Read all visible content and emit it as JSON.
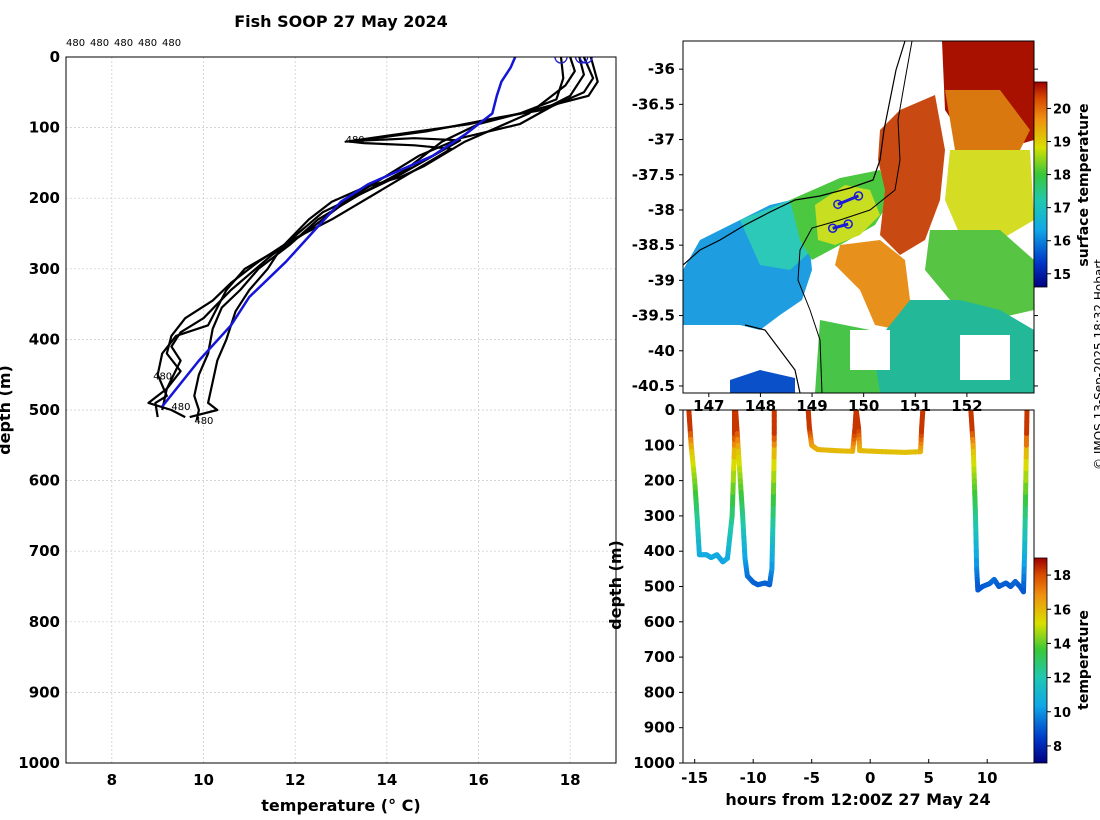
{
  "title": "Fish SOOP 27 May 2024",
  "credit": "© IMOS 13-Sep-2025 18:32 Hobart",
  "chart_data": [
    {
      "type": "line",
      "title": "Fish SOOP 27 May 2024",
      "xlabel": "temperature (° C)",
      "ylabel": "depth (m)",
      "xlim": [
        7,
        19
      ],
      "ylim": [
        1000,
        0
      ],
      "xticks": [
        8,
        10,
        12,
        14,
        16,
        18
      ],
      "yticks": [
        0,
        100,
        200,
        300,
        400,
        500,
        600,
        700,
        800,
        900,
        1000
      ],
      "grid": true,
      "top_labels": [
        "480",
        "480",
        "480",
        "480",
        "480"
      ],
      "annotations": [
        {
          "text": "480",
          "x": 13.1,
          "y": 122
        },
        {
          "text": "480",
          "x": 8.9,
          "y": 457
        },
        {
          "text": "480",
          "x": 9.3,
          "y": 500
        },
        {
          "text": "480",
          "x": 9.8,
          "y": 520
        }
      ],
      "series": [
        {
          "name": "profile-1",
          "color": "#000000",
          "points": [
            [
              17.8,
              0
            ],
            [
              17.85,
              30
            ],
            [
              17.7,
              60
            ],
            [
              16.9,
              80
            ],
            [
              15.8,
              95
            ],
            [
              13.1,
              120
            ],
            [
              13.6,
              118
            ],
            [
              14.6,
              115
            ],
            [
              15.6,
              118
            ],
            [
              14.2,
              170
            ],
            [
              12.6,
              220
            ],
            [
              11.7,
              270
            ],
            [
              10.9,
              300
            ],
            [
              10.5,
              330
            ],
            [
              10.1,
              380
            ],
            [
              9.4,
              395
            ],
            [
              9.1,
              420
            ],
            [
              9.0,
              450
            ],
            [
              9.2,
              480
            ],
            [
              8.95,
              490
            ],
            [
              9.0,
              510
            ]
          ]
        },
        {
          "name": "profile-2",
          "color": "#000000",
          "points": [
            [
              18.2,
              0
            ],
            [
              18.3,
              25
            ],
            [
              18.0,
              55
            ],
            [
              17.4,
              75
            ],
            [
              16.5,
              85
            ],
            [
              14.9,
              105
            ],
            [
              13.2,
              120
            ],
            [
              13.5,
              122
            ],
            [
              14.6,
              125
            ],
            [
              15.4,
              130
            ],
            [
              14.1,
              180
            ],
            [
              12.8,
              230
            ],
            [
              11.9,
              260
            ],
            [
              11.2,
              290
            ],
            [
              10.6,
              320
            ],
            [
              10.2,
              345
            ],
            [
              9.6,
              370
            ],
            [
              9.3,
              395
            ],
            [
              9.2,
              420
            ],
            [
              9.5,
              445
            ],
            [
              9.2,
              470
            ],
            [
              9.1,
              500
            ]
          ]
        },
        {
          "name": "profile-3",
          "color": "#000000",
          "points": [
            [
              18.3,
              0
            ],
            [
              18.5,
              30
            ],
            [
              18.3,
              50
            ],
            [
              17.6,
              70
            ],
            [
              16.9,
              95
            ],
            [
              15.6,
              115
            ],
            [
              14.7,
              140
            ],
            [
              13.2,
              200
            ],
            [
              12.2,
              250
            ],
            [
              11.5,
              280
            ],
            [
              10.6,
              330
            ],
            [
              10.0,
              370
            ],
            [
              9.5,
              390
            ],
            [
              9.3,
              410
            ],
            [
              9.5,
              430
            ],
            [
              9.2,
              470
            ],
            [
              8.8,
              490
            ],
            [
              9.3,
              500
            ],
            [
              9.6,
              510
            ]
          ]
        },
        {
          "name": "profile-4",
          "color": "#000000",
          "points": [
            [
              18.45,
              0
            ],
            [
              18.6,
              35
            ],
            [
              18.4,
              55
            ],
            [
              17.2,
              75
            ],
            [
              16.0,
              95
            ],
            [
              15.2,
              120
            ],
            [
              14.4,
              160
            ],
            [
              13.4,
              195
            ],
            [
              12.5,
              230
            ],
            [
              11.9,
              265
            ],
            [
              11.2,
              300
            ],
            [
              10.8,
              330
            ],
            [
              10.4,
              355
            ],
            [
              10.2,
              385
            ],
            [
              10.1,
              420
            ],
            [
              9.9,
              450
            ],
            [
              9.8,
              480
            ],
            [
              9.9,
              500
            ],
            [
              9.85,
              515
            ]
          ]
        },
        {
          "name": "profile-5",
          "color": "#000000",
          "points": [
            [
              18.0,
              0
            ],
            [
              18.1,
              20
            ],
            [
              17.9,
              40
            ],
            [
              17.5,
              60
            ],
            [
              17.1,
              80
            ],
            [
              16.4,
              100
            ],
            [
              15.7,
              120
            ],
            [
              14.8,
              155
            ],
            [
              14.3,
              170
            ],
            [
              13.5,
              185
            ],
            [
              12.8,
              205
            ],
            [
              12.3,
              230
            ],
            [
              11.7,
              270
            ],
            [
              11.4,
              300
            ],
            [
              11.0,
              330
            ],
            [
              10.7,
              360
            ],
            [
              10.5,
              400
            ],
            [
              10.3,
              430
            ],
            [
              10.2,
              460
            ],
            [
              10.1,
              490
            ],
            [
              10.3,
              500
            ],
            [
              9.7,
              510
            ]
          ]
        },
        {
          "name": "mean-profile",
          "color": "#1515d8",
          "points": [
            [
              16.8,
              0
            ],
            [
              16.7,
              15
            ],
            [
              16.5,
              35
            ],
            [
              16.4,
              55
            ],
            [
              16.3,
              80
            ],
            [
              15.7,
              110
            ],
            [
              15.0,
              140
            ],
            [
              14.3,
              160
            ],
            [
              13.6,
              180
            ],
            [
              13.0,
              205
            ],
            [
              12.5,
              240
            ],
            [
              11.8,
              290
            ],
            [
              11.0,
              340
            ],
            [
              10.6,
              380
            ],
            [
              9.9,
              430
            ],
            [
              9.1,
              495
            ]
          ]
        }
      ],
      "surface_markers": [
        {
          "x": 17.8,
          "y": 0
        },
        {
          "x": 18.25,
          "y": 0
        },
        {
          "x": 18.35,
          "y": 0
        }
      ]
    },
    {
      "type": "heatmap",
      "name": "surface-temperature-map",
      "xlim": [
        146.5,
        153.3
      ],
      "ylim": [
        -40.6,
        -35.6
      ],
      "xticks": [
        147,
        148,
        149,
        150,
        151,
        152
      ],
      "yticks": [
        -36,
        -36.5,
        -37,
        -37.5,
        -38,
        -38.5,
        -39,
        -39.5,
        -40,
        -40.5
      ],
      "colorbar_label": "surface temperature",
      "colorbar_range": [
        14.6,
        20.8
      ],
      "colorbar_ticks": [
        15,
        16,
        17,
        18,
        19,
        20
      ],
      "track": [
        {
          "lon": 149.9,
          "lat": -37.8
        },
        {
          "lon": 149.5,
          "lat": -37.92
        },
        {
          "lon": 149.7,
          "lat": -38.2
        },
        {
          "lon": 149.4,
          "lat": -38.26
        }
      ]
    },
    {
      "type": "scatter",
      "name": "depth-time-section",
      "xlabel": "hours from 12:00Z 27 May 24",
      "ylabel": "depth (m)",
      "xlim": [
        -16,
        14
      ],
      "ylim": [
        1000,
        0
      ],
      "xticks": [
        -15,
        -10,
        -5,
        0,
        5,
        10
      ],
      "yticks": [
        0,
        100,
        200,
        300,
        400,
        500,
        600,
        700,
        800,
        900,
        1000
      ],
      "colorbar_label": "temperature",
      "colorbar_range": [
        7,
        19
      ],
      "colorbar_ticks": [
        8,
        10,
        12,
        14,
        16,
        18
      ],
      "dives": [
        {
          "start": -15.5,
          "end": -11.6,
          "bottom_depth": 415,
          "pts": [
            [
              -15.5,
              0
            ],
            [
              -15.3,
              100
            ],
            [
              -15.0,
              200
            ],
            [
              -14.8,
              300
            ],
            [
              -14.6,
              410
            ],
            [
              -14.0,
              410
            ],
            [
              -13.6,
              418
            ],
            [
              -13.1,
              410
            ],
            [
              -12.6,
              430
            ],
            [
              -12.2,
              420
            ],
            [
              -11.8,
              300
            ],
            [
              -11.6,
              100
            ],
            [
              -11.6,
              0
            ]
          ]
        },
        {
          "start": -11.5,
          "end": -8.2,
          "bottom_depth": 490,
          "pts": [
            [
              -11.5,
              0
            ],
            [
              -11.3,
              100
            ],
            [
              -11.1,
              200
            ],
            [
              -10.9,
              300
            ],
            [
              -10.7,
              420
            ],
            [
              -10.5,
              470
            ],
            [
              -10.0,
              488
            ],
            [
              -9.6,
              495
            ],
            [
              -9.0,
              490
            ],
            [
              -8.6,
              495
            ],
            [
              -8.4,
              450
            ],
            [
              -8.3,
              300
            ],
            [
              -8.2,
              100
            ],
            [
              -8.2,
              0
            ]
          ]
        },
        {
          "start": -5.3,
          "end": 4.5,
          "bottom_depth": 118,
          "pts": [
            [
              -5.3,
              0
            ],
            [
              -5.2,
              50
            ],
            [
              -5.0,
              100
            ],
            [
              -4.5,
              112
            ],
            [
              -3,
              115
            ],
            [
              -1.5,
              117
            ],
            [
              -1.3,
              50
            ],
            [
              -1.2,
              0
            ],
            [
              -1.0,
              50
            ],
            [
              -0.9,
              115
            ],
            [
              1,
              118
            ],
            [
              3,
              120
            ],
            [
              4.3,
              118
            ],
            [
              4.4,
              50
            ],
            [
              4.5,
              0
            ]
          ]
        },
        {
          "start": 8.6,
          "end": 13.4,
          "bottom_depth": 500,
          "pts": [
            [
              8.6,
              0
            ],
            [
              8.8,
              100
            ],
            [
              8.9,
              200
            ],
            [
              9.0,
              300
            ],
            [
              9.1,
              450
            ],
            [
              9.2,
              510
            ],
            [
              9.6,
              500
            ],
            [
              10.2,
              492
            ],
            [
              10.6,
              480
            ],
            [
              11.0,
              500
            ],
            [
              11.6,
              490
            ],
            [
              12.0,
              500
            ],
            [
              12.4,
              486
            ],
            [
              12.8,
              500
            ],
            [
              13.1,
              515
            ],
            [
              13.2,
              400
            ],
            [
              13.3,
              200
            ],
            [
              13.4,
              0
            ]
          ]
        }
      ]
    }
  ]
}
